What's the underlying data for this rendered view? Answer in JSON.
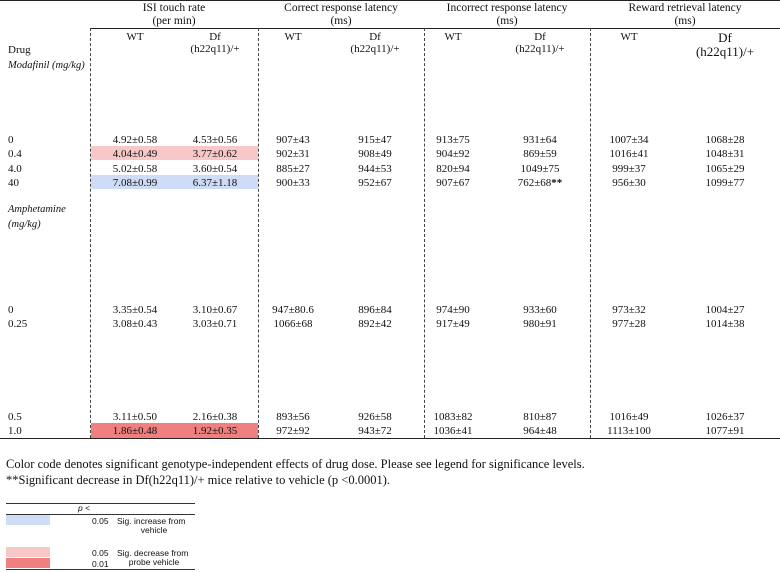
{
  "table": {
    "group_headers": [
      {
        "title": "ISI touch rate",
        "units": "(per min)"
      },
      {
        "title": "Correct response latency",
        "units": "(ms)"
      },
      {
        "title": "Incorrect response latency",
        "units": "(ms)"
      },
      {
        "title": "Reward retrieval latency",
        "units": "(ms)"
      }
    ],
    "genotype_wt": "WT",
    "genotype_df": [
      "Df",
      "(h22q11)/+"
    ],
    "drug_label": "Drug",
    "drugs": [
      {
        "name": "Modafinil (mg/kg)",
        "rows": [
          {
            "dose": "0",
            "cells": [
              "4.92±0.58",
              "4.53±0.56",
              "907±43",
              "915±47",
              "913±75",
              "931±64",
              "1007±34",
              "1068±28"
            ]
          },
          {
            "dose": "0.4",
            "cells": [
              "4.04±0.49",
              "3.77±0.62",
              "902±31",
              "908±49",
              "904±92",
              "869±59",
              "1016±41",
              "1048±31"
            ]
          },
          {
            "dose": "4.0",
            "cells": [
              "5.02±0.58",
              "3.60±0.54",
              "885±27",
              "944±53",
              "820±94",
              "1049±75",
              "999±37",
              "1065±29"
            ]
          },
          {
            "dose": "40",
            "cells": [
              "7.08±0.99",
              "6.37±1.18",
              "900±33",
              "952±67",
              "907±67",
              "762±68**",
              "956±30",
              "1099±77"
            ]
          }
        ]
      },
      {
        "name": "Amphetamine (mg/kg)",
        "name_lines": [
          "Amphetamine",
          "(mg/kg)"
        ],
        "rows": [
          {
            "dose": "0",
            "cells": [
              "3.35±0.54",
              "3.10±0.67",
              "947±80.6",
              "896±84",
              "974±90",
              "933±60",
              "973±32",
              "1004±27"
            ]
          },
          {
            "dose": "0.25",
            "cells": [
              "3.08±0.43",
              "3.03±0.71",
              "1066±68",
              "892±42",
              "917±49",
              "980±91",
              "977±28",
              "1014±38"
            ]
          },
          {
            "dose": "0.5",
            "cells": [
              "3.11±0.50",
              "2.16±0.38",
              "893±56",
              "926±58",
              "1083±82",
              "810±87",
              "1016±49",
              "1026±37"
            ]
          },
          {
            "dose": "1.0",
            "cells": [
              "1.86±0.48",
              "1.92±0.35",
              "972±92",
              "943±72",
              "1036±41",
              "964±48",
              "1113±100",
              "1077±91"
            ]
          }
        ]
      }
    ]
  },
  "notes": {
    "line1": "Color code denotes significant genotype-independent effects of drug dose. Please see legend for significance levels.",
    "line2": "**Significant decrease in Df(h22q11)/+ mice relative to vehicle (p <0.0001)."
  },
  "legend": {
    "header": "p <",
    "items": [
      {
        "p": "0.05",
        "label_lines": [
          "Sig. increase from",
          "vehicle"
        ],
        "color": "#cfdcf5"
      },
      {
        "p": "0.05",
        "label_lines": [
          "Sig. decrease from",
          "probe vehicle"
        ],
        "color": "#f8c8c8"
      },
      {
        "p": "0.01",
        "label_lines": [],
        "color": "#f07f80"
      }
    ]
  },
  "colors": {
    "increase_005": "#cfdcf5",
    "decrease_005": "#f8c8c8",
    "decrease_001": "#f07f80"
  }
}
